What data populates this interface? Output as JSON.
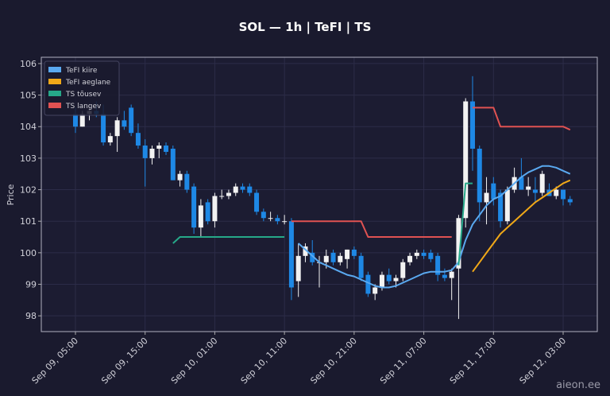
{
  "chart_data": {
    "type": "candlestick",
    "title": "SOL — 1h  |  TeFI  |  TS",
    "y_label": "Price",
    "watermark": "aieon.ee",
    "up_color": "#f2f2f2",
    "down_color": "#1e88e5",
    "grid": true,
    "legend": "upper left",
    "xlim": [
      -4.9,
      74.9
    ],
    "ylim": [
      97.5,
      106.2
    ],
    "yticks": [
      98,
      99,
      100,
      101,
      102,
      103,
      104,
      105,
      106
    ],
    "xticks": [
      {
        "value": 0,
        "label": "Sep 09, 05:00"
      },
      {
        "value": 10,
        "label": "Sep 09, 15:00"
      },
      {
        "value": 20,
        "label": "Sep 10, 01:00"
      },
      {
        "value": 30,
        "label": "Sep 10, 11:00"
      },
      {
        "value": 40,
        "label": "Sep 10, 21:00"
      },
      {
        "value": 50,
        "label": "Sep 11, 07:00"
      },
      {
        "value": 60,
        "label": "Sep 11, 17:00"
      },
      {
        "value": 70,
        "label": "Sep 12, 03:00"
      }
    ],
    "x": [
      0,
      1,
      2,
      3,
      4,
      5,
      6,
      7,
      8,
      9,
      10,
      11,
      12,
      13,
      14,
      15,
      16,
      17,
      18,
      19,
      20,
      21,
      22,
      23,
      24,
      25,
      26,
      27,
      28,
      29,
      30,
      31,
      32,
      33,
      34,
      35,
      36,
      37,
      38,
      39,
      40,
      41,
      42,
      43,
      44,
      45,
      46,
      47,
      48,
      49,
      50,
      51,
      52,
      53,
      54,
      55,
      56,
      57,
      58,
      59,
      60,
      61,
      62,
      63,
      64,
      65,
      66,
      67,
      68,
      69,
      70,
      71
    ],
    "open": [
      104.4,
      104.0,
      104.4,
      104.5,
      104.4,
      103.5,
      103.7,
      104.2,
      104.6,
      103.8,
      103.4,
      103.0,
      103.3,
      103.4,
      103.3,
      102.3,
      102.5,
      102.1,
      100.8,
      101.6,
      101.0,
      101.8,
      101.8,
      101.9,
      102.1,
      102.1,
      101.9,
      101.3,
      101.1,
      101.1,
      101.0,
      101.0,
      99.1,
      99.9,
      100.0,
      99.7,
      99.7,
      100.0,
      99.7,
      99.8,
      100.1,
      99.9,
      99.3,
      98.7,
      98.9,
      99.3,
      99.1,
      99.2,
      99.7,
      99.9,
      100.0,
      100.0,
      99.9,
      99.3,
      99.2,
      99.5,
      101.1,
      104.8,
      103.3,
      101.6,
      102.2,
      101.9,
      101.0,
      102.0,
      102.4,
      102.0,
      102.0,
      101.9,
      102.0,
      101.8,
      102.0,
      101.7
    ],
    "high": [
      104.6,
      104.5,
      104.7,
      104.8,
      104.7,
      103.8,
      104.3,
      104.5,
      104.7,
      104.1,
      103.6,
      103.4,
      103.5,
      103.5,
      103.4,
      102.6,
      102.6,
      102.2,
      101.7,
      101.7,
      101.9,
      102.0,
      102.0,
      102.2,
      102.2,
      102.2,
      102.0,
      101.4,
      101.3,
      101.2,
      101.2,
      101.1,
      100.3,
      100.3,
      100.4,
      99.9,
      100.1,
      100.1,
      100.0,
      100.1,
      100.2,
      100.0,
      99.4,
      99.0,
      99.4,
      99.5,
      99.3,
      99.8,
      100.0,
      100.1,
      100.1,
      100.1,
      100.0,
      99.5,
      99.5,
      101.2,
      104.9,
      105.6,
      103.4,
      102.4,
      102.4,
      102.0,
      102.1,
      102.7,
      103.0,
      102.4,
      102.4,
      102.6,
      102.2,
      102.1,
      102.0,
      101.8
    ],
    "low": [
      103.8,
      104.0,
      104.2,
      104.3,
      103.4,
      103.4,
      103.2,
      103.9,
      103.7,
      103.3,
      102.1,
      102.8,
      103.0,
      103.1,
      102.3,
      102.1,
      101.9,
      100.6,
      100.5,
      100.9,
      100.8,
      101.7,
      101.7,
      101.8,
      101.9,
      101.8,
      101.2,
      101.0,
      101.0,
      100.9,
      100.9,
      98.5,
      98.6,
      99.7,
      99.6,
      98.9,
      99.5,
      99.6,
      99.6,
      99.5,
      99.8,
      99.1,
      98.6,
      98.5,
      98.8,
      99.0,
      98.9,
      99.1,
      99.6,
      99.8,
      99.8,
      99.7,
      99.1,
      99.1,
      98.5,
      97.9,
      100.8,
      102.6,
      101.0,
      100.9,
      101.5,
      100.8,
      100.9,
      101.9,
      102.0,
      101.8,
      101.6,
      101.8,
      101.8,
      101.7,
      101.5,
      101.5
    ],
    "close": [
      104.0,
      104.4,
      104.5,
      104.4,
      103.5,
      103.7,
      104.2,
      104.0,
      103.8,
      103.4,
      103.0,
      103.3,
      103.4,
      103.2,
      102.3,
      102.5,
      102.0,
      100.8,
      101.5,
      101.0,
      101.8,
      101.8,
      101.9,
      102.1,
      102.0,
      101.9,
      101.3,
      101.1,
      101.1,
      101.0,
      101.0,
      98.9,
      99.9,
      100.2,
      99.7,
      99.7,
      99.9,
      99.7,
      99.9,
      100.1,
      99.9,
      99.2,
      98.7,
      98.9,
      99.3,
      99.1,
      99.2,
      99.7,
      99.9,
      100.0,
      99.9,
      99.8,
      99.3,
      99.2,
      99.4,
      101.1,
      104.8,
      103.3,
      101.6,
      101.9,
      101.7,
      101.0,
      102.0,
      102.4,
      102.0,
      102.1,
      101.9,
      102.5,
      101.8,
      102.0,
      101.7,
      101.6
    ],
    "series": [
      {
        "name": "TeFI kiire",
        "color": "#5aa9f0",
        "values": [
          null,
          null,
          null,
          null,
          null,
          null,
          null,
          null,
          null,
          null,
          null,
          null,
          null,
          null,
          null,
          null,
          null,
          null,
          null,
          null,
          null,
          null,
          null,
          null,
          null,
          null,
          null,
          null,
          null,
          null,
          null,
          null,
          100.3,
          100.1,
          99.9,
          99.7,
          99.6,
          99.5,
          99.4,
          99.3,
          99.25,
          99.15,
          99.05,
          98.95,
          98.9,
          98.9,
          98.95,
          99.05,
          99.15,
          99.25,
          99.35,
          99.4,
          99.4,
          99.4,
          99.45,
          99.7,
          100.4,
          100.9,
          101.2,
          101.5,
          101.7,
          101.8,
          102.0,
          102.2,
          102.4,
          102.55,
          102.65,
          102.75,
          102.75,
          102.7,
          102.6,
          102.5
        ]
      },
      {
        "name": "TeFI aeglane",
        "color": "#f0a818",
        "values": [
          null,
          null,
          null,
          null,
          null,
          null,
          null,
          null,
          null,
          null,
          null,
          null,
          null,
          null,
          null,
          null,
          null,
          null,
          null,
          null,
          null,
          null,
          null,
          null,
          null,
          null,
          null,
          null,
          null,
          null,
          null,
          null,
          null,
          null,
          null,
          null,
          null,
          null,
          null,
          null,
          null,
          null,
          null,
          null,
          null,
          null,
          null,
          null,
          null,
          null,
          null,
          null,
          null,
          null,
          null,
          null,
          null,
          99.4,
          99.7,
          100.0,
          100.3,
          100.6,
          100.8,
          101.0,
          101.2,
          101.4,
          101.6,
          101.75,
          101.9,
          102.05,
          102.2,
          102.3
        ]
      },
      {
        "name": "TS tõusev",
        "color": "#26a889",
        "values": [
          null,
          null,
          null,
          null,
          null,
          null,
          null,
          null,
          null,
          null,
          null,
          null,
          null,
          null,
          100.3,
          100.5,
          100.5,
          100.5,
          100.5,
          100.5,
          100.5,
          100.5,
          100.5,
          100.5,
          100.5,
          100.5,
          100.5,
          100.5,
          100.5,
          100.5,
          100.5,
          null,
          null,
          null,
          null,
          null,
          null,
          null,
          null,
          null,
          null,
          null,
          null,
          null,
          null,
          null,
          null,
          null,
          null,
          null,
          null,
          null,
          null,
          null,
          null,
          99.6,
          102.2,
          102.2,
          null,
          null,
          null,
          null,
          null,
          null,
          null,
          null,
          null,
          null,
          null,
          null,
          null,
          null
        ]
      },
      {
        "name": "TS langev",
        "color": "#e05252",
        "values": [
          null,
          null,
          null,
          null,
          null,
          null,
          null,
          null,
          null,
          null,
          null,
          null,
          null,
          null,
          null,
          null,
          null,
          null,
          null,
          null,
          null,
          null,
          null,
          null,
          null,
          null,
          null,
          null,
          null,
          null,
          null,
          101.0,
          101.0,
          101.0,
          101.0,
          101.0,
          101.0,
          101.0,
          101.0,
          101.0,
          101.0,
          101.0,
          100.5,
          100.5,
          100.5,
          100.5,
          100.5,
          100.5,
          100.5,
          100.5,
          100.5,
          100.5,
          100.5,
          100.5,
          100.5,
          null,
          null,
          104.6,
          104.6,
          104.6,
          104.6,
          104.0,
          104.0,
          104.0,
          104.0,
          104.0,
          104.0,
          104.0,
          104.0,
          104.0,
          104.0,
          103.9
        ]
      }
    ]
  }
}
